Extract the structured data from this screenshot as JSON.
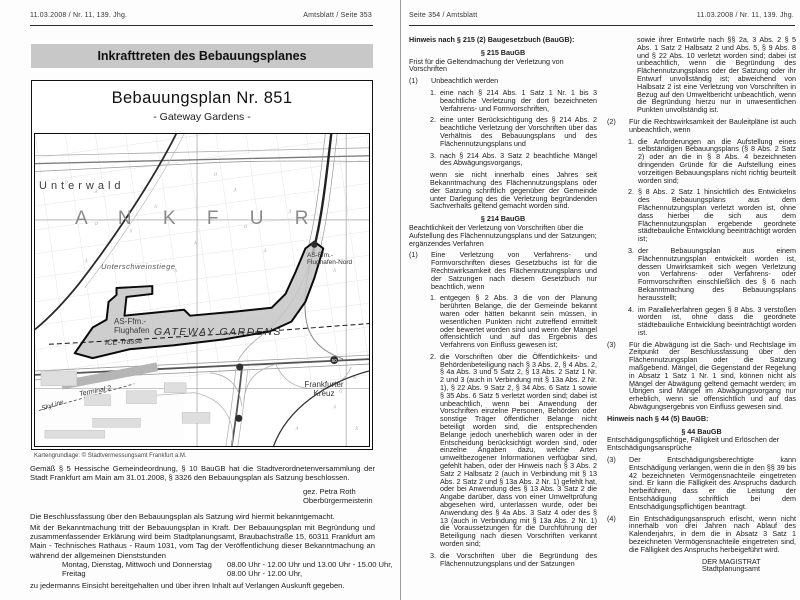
{
  "left_page": {
    "header_left": "11.03.2008 / Nr. 11, 139. Jhg.",
    "header_right": "Amtsblatt / Seite 353",
    "title": "Inkrafttreten des Bebauungsplanes",
    "map": {
      "title": "Bebauungsplan Nr. 851",
      "subtitle": "- Gateway Gardens -",
      "labels": {
        "unterwald": "Unterwald",
        "frankfurt_letters": "A N K F U R",
        "unterschweinstiege": "Unterschweinstiege",
        "as_ffm_flughafen_nord": "AS-Ffm.-Flughafen-Nord",
        "as_ffm_flughafen": "AS-Ffm.-Flughafen",
        "gateway_gardens": "GATEWAY GARDENS",
        "ice_trasse": "ICE-Trasse",
        "terminal_2": "Terminal 2",
        "skyline": "SkyLine",
        "frankfurter_kreuz": "Frankfurter Kreuz",
        "badge_a3": "50"
      },
      "caption": "Kartengrundlage: © Stadtvermessungsamt Frankfurt a.M."
    },
    "paragraphs": {
      "decision": "Gemäß § 5 Hessische Gemeindeordnung, § 10 BauGB hat die Stadtverordnetenversammlung der Stadt Frankfurt am Main am 31.01.2008, § 3326 den Bebauungsplan als Satzung beschlossen.",
      "signature_name": "gez. Petra Roth",
      "signature_title": "Oberbürgermeisterin",
      "announcement": "Die Beschlussfassung über den Bebauungsplan als Satzung wird hiermit bekanntgemacht.",
      "effect": "Mit der Bekanntmachung tritt der Bebauungsplan in Kraft. Der Bebauungsplan mit Begründung und zusammenfassender Erklärung wird beim Stadtplanungsamt, Braubachstraße 15, 60311 Frankfurt am Main - Technisches Rathaus - Raum 1031, vom Tag der Veröffentlichung dieser Bekanntmachung an während der allgemeinen Dienststunden",
      "hours": [
        {
          "days": "Montag, Dienstag, Mittwoch und Donnerstag",
          "times": "08.00 Uhr - 12.00 Uhr und 13.00 Uhr - 15.00 Uhr,"
        },
        {
          "days": "Freitag",
          "times": "08.00 Uhr - 12.00 Uhr,"
        }
      ],
      "closing": "zu jedermanns Einsicht bereitgehalten und über ihren Inhalt auf Verlangen Auskunft gegeben."
    }
  },
  "right_page": {
    "header_left": "Seite 354 / Amtsblatt",
    "header_right": "11.03.2008 / Nr. 11, 139. Jhg.",
    "col1": [
      {
        "t": "bold",
        "text": "Hinweis nach § 215 (2) Baugesetzbuch (BauGB):"
      },
      {
        "t": "center",
        "text": "§ 215 BauGB"
      },
      {
        "t": "plain",
        "text": "Frist für die Geltendmachung der Verletzung von Vorschriften"
      },
      {
        "t": "clause",
        "n": "(1)",
        "text": "Unbeachtlich werden"
      },
      {
        "t": "item",
        "n": "1.",
        "text": "eine nach § 214 Abs. 1 Satz 1 Nr. 1 bis 3 beachtliche Verletzung der dort bezeichneten Verfahrens- und Formvorschriften,"
      },
      {
        "t": "item",
        "n": "2.",
        "text": "eine unter Berücksichtigung des § 214 Abs. 2 beachtliche Verletzung der Vorschriften über das Verhältnis des Bebauungsplans und des Flächennutzungsplans und"
      },
      {
        "t": "item",
        "n": "3.",
        "text": "nach § 214 Abs. 3 Satz 2 beachtliche Mängel des Abwägungsvorgangs,"
      },
      {
        "t": "cont2",
        "text": "wenn sie nicht innerhalb eines Jahres seit Bekanntmachung des Flächennutzungsplans oder der Satzung schriftlich gegenüber der Gemeinde unter Darlegung des die Verletzung begründenden Sachverhalts geltend gemacht worden sind."
      },
      {
        "t": "center",
        "text": "§ 214 BauGB"
      },
      {
        "t": "plain",
        "text": "Beachtlichkeit der Verletzung von Vorschriften über die Aufstellung des Flächennutzungsplans und der Satzungen; ergänzendes Verfahren"
      },
      {
        "t": "clause",
        "n": "(1)",
        "text": "Eine Verletzung von Verfahrens- und Formvorschriften dieses Gesetzbuchs ist für die Rechtswirksamkeit des Flächennutzungsplans und der Satzungen nach diesem Gesetzbuch nur beachtlich, wenn"
      },
      {
        "t": "item",
        "n": "1.",
        "text": "entgegen § 2 Abs. 3 die von der Planung berührten Belange, die der Gemeinde bekannt waren oder hätten bekannt sein müssen, in wesentlichen Punkten nicht zutreffend ermittelt oder bewertet worden sind und wenn der Mangel offensichtlich und auf das Ergebnis des Verfahrens von Einfluss gewesen ist;"
      },
      {
        "t": "item",
        "n": "2.",
        "text": "die Vorschriften über die Öffentlichkeits- und Behördenbeteiligung nach § 3 Abs. 2, § 4 Abs. 2, § 4a Abs. 3 und 5 Satz 2, § 13 Abs. 2 Satz 1 Nr. 2 und 3 (auch in Verbindung mit § 13a Abs. 2 Nr. 1), § 22 Abs. 9 Satz 2, § 34 Abs. 6 Satz 1 sowie § 35 Abs. 6 Satz 5 verletzt worden sind; dabei ist unbeachtlich, wenn bei Anwendung der Vorschriften einzelne Personen, Behörden oder sonstige Träger öffentlicher Belange nicht beteiligt worden sind, die entsprechenden Belange jedoch unerheblich waren oder in der Entscheidung berücksichtigt worden sind, oder einzelne Angaben dazu, welche Arten umweltbezogener Informationen verfügbar sind, gefehlt haben, oder der Hinweis nach § 3 Abs. 2 Satz 2 Halbsatz 2 (auch in Verbindung mit § 13 Abs. 2 Satz 2 und § 13a Abs. 2 Nr. 1) gefehlt hat, oder bei Anwendung des § 13 Abs. 3 Satz 2 die Angabe darüber, dass von einer Umweltprüfung abgesehen wird, unterlassen wurde, oder bei Anwendung des § 4a Abs. 3 Satz 4 oder des § 13 (auch in Verbindung mit § 13a Abs. 2 Nr. 1) die Voraussetzungen für die Durchführung der Beteiligung nach diesen Vorschriften verkannt worden sind;"
      },
      {
        "t": "item",
        "n": "3.",
        "text": "die Vorschriften über die Begründung des Flächennutzungsplans und der Satzungen"
      }
    ],
    "col2": [
      {
        "t": "cont3",
        "text": "sowie ihrer Entwürfe nach §§ 2a, 3 Abs. 2 § 5 Abs. 1 Satz 2 Halbsatz 2 und Abs. 5, § 9 Abs. 8 und § 22 Abs. 10 verletzt worden sind; dabei ist unbeachtlich, wenn die Begründung des Flächennutzungsplans oder der Satzung oder ihr Entwurf unvollständig ist; abweichend von Halbsatz 2 ist eine Verletzung von Vorschriften in Bezug auf den Umweltbericht unbeachtlich, wenn die Begründung hierzu nur in unwesentlichen Punkten unvollständig ist."
      },
      {
        "t": "clause",
        "n": "(2)",
        "text": "Für die Rechtswirksamkeit der Bauleitpläne ist auch unbeachtlich, wenn"
      },
      {
        "t": "item",
        "n": "1.",
        "text": "die Anforderungen an die Aufstellung eines selbständigen Bebauungsplans (§ 8 Abs. 2 Satz 2) oder an die in § 8 Abs. 4 bezeichneten dringenden Gründe für die Aufstellung eines vorzeitigen Bebauungsplans nicht richtig beurteilt worden sind;"
      },
      {
        "t": "item",
        "n": "2.",
        "text": "§ 8 Abs. 2 Satz 1 hinsichtlich des Entwickelns des Bebauungsplans aus dem Flächennutzungsplan verletzt worden ist, ohne dass hierbei die sich aus dem Flächennutzungsplan ergebende geordnete städtebauliche Entwicklung beeinträchtigt worden ist;"
      },
      {
        "t": "item",
        "n": "3.",
        "text": "der Bebauungsplan aus einem Flächennutzungsplan entwickelt worden ist, dessen Unwirksamkeit sich wegen Verletzung von Verfahrens- oder Verfahrens- oder Formvorschriften einschließlich des § 6 nach Bekanntmachung des Bebauungsplans herausstellt;"
      },
      {
        "t": "item",
        "n": "4.",
        "text": "im Parallelverfahren gegen § 8 Abs. 3 verstoßen worden ist, ohne dass die geordnete städtebauliche Entwicklung beeinträchtigt worden ist."
      },
      {
        "t": "clause",
        "n": "(3)",
        "text": "Für die Abwägung ist die Sach- und Rechtslage im Zeitpunkt der Beschlussfassung über den Flächennutzungsplan oder die Satzung maßgebend. Mängel, die Gegenstand der Regelung in Absatz 1 Satz 1 Nr. 1 sind, können nicht als Mängel der Abwägung geltend gemacht werden; im Übrigen sind Mängel im Abwägungsvorgang nur erheblich, wenn sie offensichtlich und auf das Abwägungsergebnis von Einfluss gewesen sind."
      },
      {
        "t": "bold",
        "text": "Hinweis nach § 44 (5) BauGB:"
      },
      {
        "t": "center",
        "text": "§ 44 BauGB"
      },
      {
        "t": "plain",
        "text": "Entschädigungspflichtige, Fälligkeit und Erlöschen der Entschädigungsansprüche"
      },
      {
        "t": "clause",
        "n": "(3)",
        "text": "Der Entschädigungsberechtigte kann Entschädigung verlangen, wenn die in den §§ 39 bis 42 bezeichneten Vermögensnachteile eingetreten sind. Er kann die Fälligkeit des Anspruchs dadurch herbeiführen, dass er die Leistung der Entschädigung schriftlich bei dem Entschädigungspflichtigen beantragt."
      },
      {
        "t": "clause",
        "n": "(4)",
        "text": "Ein Entschädigungsanspruch erlischt, wenn nicht innerhalb von drei Jahren nach Ablauf des Kalenderjahrs, in dem die in Absatz 3 Satz 1 bezeichneten Vermögensnachteile eingetreten sind, die Fälligkeit des Anspruchs herbeigeführt wird."
      },
      {
        "t": "signoff",
        "text": "DER MAGISTRAT"
      },
      {
        "t": "signoff",
        "text": "Stadtplanungsamt"
      }
    ]
  }
}
